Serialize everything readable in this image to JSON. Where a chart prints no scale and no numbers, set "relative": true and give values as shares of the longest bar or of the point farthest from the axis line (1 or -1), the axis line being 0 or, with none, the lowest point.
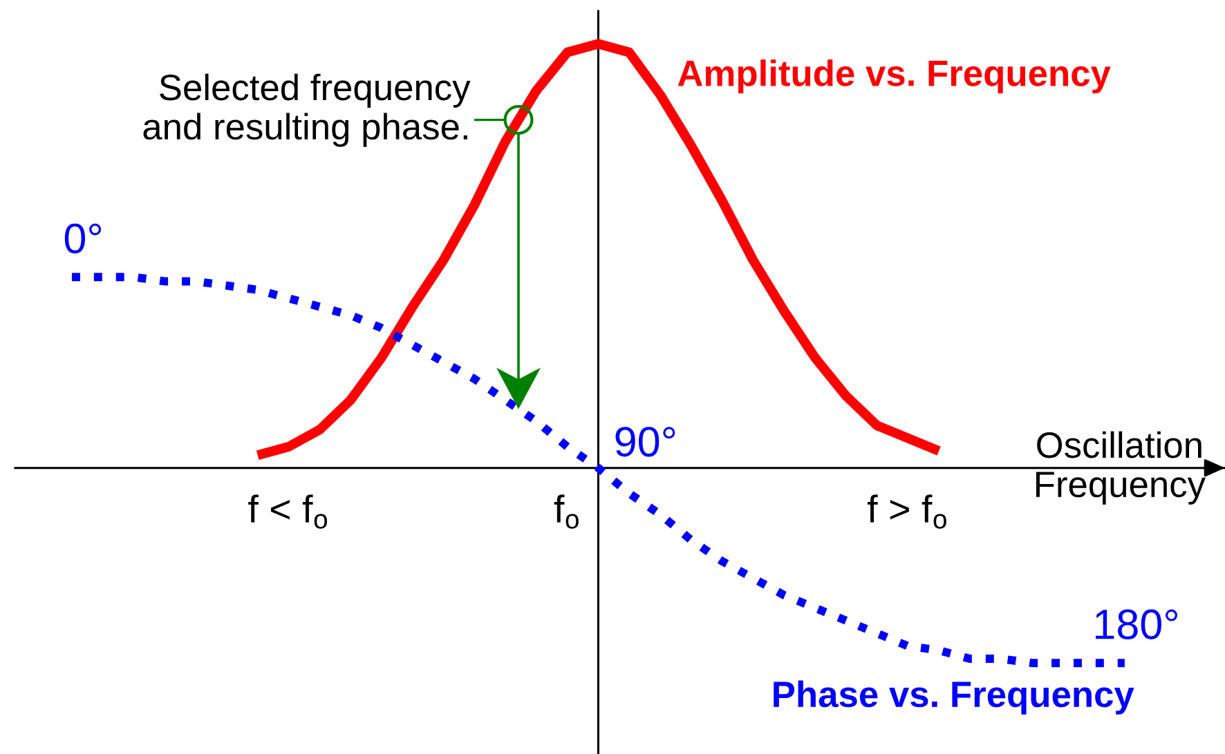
{
  "chart_data": {
    "type": "line",
    "relative": true,
    "xlabel": "Oscillation\nFrequency",
    "categories": [
      null,
      null,
      null,
      null,
      null,
      null,
      null,
      "f < f$_{o}$",
      null,
      null,
      null,
      null,
      null,
      null,
      null,
      null,
      "f$_{o}$",
      null,
      null,
      null,
      null,
      null,
      null,
      null,
      null,
      null,
      null,
      "f > f$_{o}$",
      null,
      null,
      null,
      null,
      null,
      null,
      null
    ],
    "series": [
      {
        "name": "Amplitude vs. Frequency",
        "color": "#ff0000",
        "line_style": "solid",
        "values": [
          null,
          null,
          null,
          null,
          null,
          null,
          0.03,
          0.05,
          0.09,
          0.16,
          0.26,
          0.38,
          0.49,
          0.62,
          0.77,
          0.89,
          0.98,
          1,
          0.98,
          0.88,
          0.76,
          0.63,
          0.49,
          0.37,
          0.26,
          0.17,
          0.1,
          0.07,
          0.04,
          null,
          null,
          null,
          null,
          null,
          null
        ]
      },
      {
        "name": "Phase vs. Frequency",
        "color": "#0000ff",
        "line_style": "dotted",
        "values": [
          0.45,
          0.45,
          0.45,
          0.44,
          0.44,
          0.43,
          0.42,
          0.4,
          0.38,
          0.36,
          0.33,
          0.29,
          0.25,
          0.21,
          0.16,
          0.11,
          0.05,
          0,
          -0.06,
          -0.11,
          -0.17,
          -0.22,
          -0.26,
          -0.3,
          -0.33,
          -0.36,
          -0.39,
          -0.42,
          -0.43,
          -0.45,
          -0.45,
          -0.46,
          -0.46,
          -0.46,
          -0.46
        ]
      }
    ],
    "annotations": [
      "Selected frequency\nand resulting phase.",
      "0°",
      "90°",
      "180°"
    ]
  }
}
